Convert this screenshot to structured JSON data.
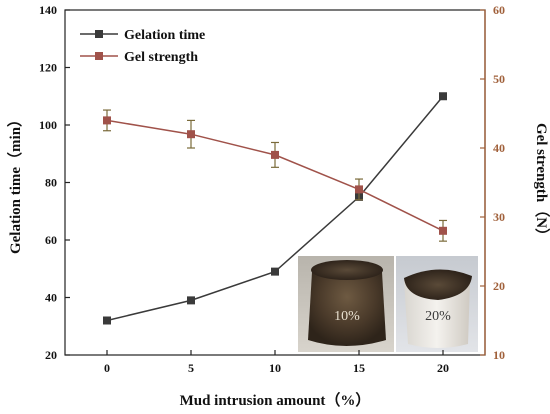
{
  "chart_data": {
    "type": "line",
    "x": [
      0,
      5,
      10,
      15,
      20
    ],
    "xlabel": "Mud intrusion amount（%）",
    "xlim": [
      -2.5,
      22.5
    ],
    "xticks": [
      "0",
      "5",
      "10",
      "15",
      "20"
    ],
    "ylabel_left": "Gelation time（min）",
    "ylim_left": [
      20,
      140
    ],
    "yticks_left": [
      "20",
      "40",
      "60",
      "80",
      "100",
      "120",
      "140"
    ],
    "ylabel_right": "Gel strength（N）",
    "ylim_right": [
      10,
      60
    ],
    "yticks_right": [
      "10",
      "20",
      "30",
      "40",
      "50",
      "60"
    ],
    "series": [
      {
        "name": "Gelation time",
        "axis": "left",
        "values": [
          32,
          39,
          49,
          75,
          110
        ],
        "color": "#3a3a3a",
        "marker": "square"
      },
      {
        "name": "Gel strength",
        "axis": "right",
        "values": [
          44,
          42,
          39,
          34,
          28
        ],
        "errors": [
          1.5,
          2,
          1.8,
          1.5,
          1.5
        ],
        "color": "#a0524a",
        "errorbar_color": "#7a6a3a",
        "marker": "square"
      }
    ],
    "legend_position": "top-left",
    "grid": false,
    "insets": [
      {
        "label": "10%",
        "x": 10
      },
      {
        "label": "20%",
        "x": 20
      }
    ],
    "left_axis_color": "#222222",
    "right_axis_color": "#a0603a"
  }
}
